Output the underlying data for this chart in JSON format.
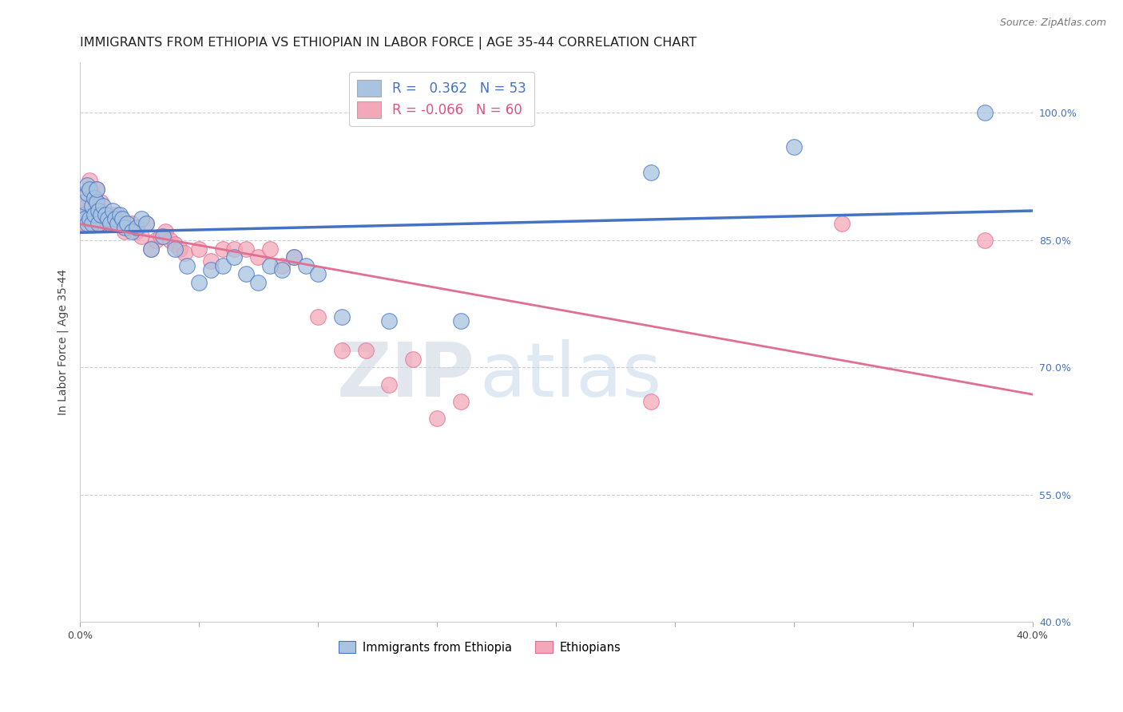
{
  "title": "IMMIGRANTS FROM ETHIOPIA VS ETHIOPIAN IN LABOR FORCE | AGE 35-44 CORRELATION CHART",
  "source": "Source: ZipAtlas.com",
  "ylabel": "In Labor Force | Age 35-44",
  "xlim": [
    0.0,
    0.4
  ],
  "ylim": [
    0.4,
    1.06
  ],
  "yticks": [
    0.4,
    0.55,
    0.7,
    0.85,
    1.0
  ],
  "ytick_labels": [
    "40.0%",
    "55.0%",
    "70.0%",
    "85.0%",
    "100.0%"
  ],
  "xticks": [
    0.0,
    0.05,
    0.1,
    0.15,
    0.2,
    0.25,
    0.3,
    0.35,
    0.4
  ],
  "xtick_labels": [
    "0.0%",
    "",
    "",
    "",
    "",
    "",
    "",
    "",
    "40.0%"
  ],
  "blue_R": 0.362,
  "blue_N": 53,
  "pink_R": -0.066,
  "pink_N": 60,
  "blue_color": "#a8c4e0",
  "pink_color": "#f4a7b9",
  "blue_line_color": "#4472c4",
  "pink_line_color": "#e07090",
  "legend_label_blue": "Immigrants from Ethiopia",
  "legend_label_pink": "Ethiopians",
  "blue_scatter_x": [
    0.001,
    0.002,
    0.002,
    0.003,
    0.003,
    0.003,
    0.004,
    0.004,
    0.005,
    0.005,
    0.006,
    0.006,
    0.007,
    0.007,
    0.008,
    0.008,
    0.009,
    0.01,
    0.011,
    0.012,
    0.013,
    0.014,
    0.015,
    0.016,
    0.017,
    0.018,
    0.019,
    0.02,
    0.022,
    0.024,
    0.026,
    0.028,
    0.03,
    0.035,
    0.04,
    0.045,
    0.05,
    0.055,
    0.06,
    0.065,
    0.07,
    0.075,
    0.08,
    0.085,
    0.09,
    0.095,
    0.1,
    0.11,
    0.13,
    0.16,
    0.24,
    0.3,
    0.38
  ],
  "blue_scatter_y": [
    0.88,
    0.875,
    0.895,
    0.87,
    0.905,
    0.915,
    0.875,
    0.91,
    0.89,
    0.87,
    0.9,
    0.88,
    0.895,
    0.91,
    0.885,
    0.87,
    0.88,
    0.89,
    0.88,
    0.875,
    0.87,
    0.885,
    0.875,
    0.87,
    0.88,
    0.875,
    0.865,
    0.87,
    0.86,
    0.865,
    0.875,
    0.87,
    0.84,
    0.855,
    0.84,
    0.82,
    0.8,
    0.815,
    0.82,
    0.83,
    0.81,
    0.8,
    0.82,
    0.815,
    0.83,
    0.82,
    0.81,
    0.76,
    0.755,
    0.755,
    0.93,
    0.96,
    1.0
  ],
  "pink_scatter_x": [
    0.001,
    0.001,
    0.002,
    0.002,
    0.003,
    0.003,
    0.004,
    0.004,
    0.005,
    0.005,
    0.006,
    0.006,
    0.007,
    0.007,
    0.008,
    0.008,
    0.009,
    0.009,
    0.01,
    0.011,
    0.012,
    0.013,
    0.014,
    0.015,
    0.016,
    0.017,
    0.018,
    0.019,
    0.02,
    0.022,
    0.024,
    0.026,
    0.028,
    0.03,
    0.032,
    0.034,
    0.036,
    0.038,
    0.04,
    0.042,
    0.044,
    0.05,
    0.055,
    0.06,
    0.065,
    0.07,
    0.075,
    0.08,
    0.085,
    0.09,
    0.1,
    0.11,
    0.12,
    0.13,
    0.14,
    0.15,
    0.16,
    0.24,
    0.32,
    0.38
  ],
  "pink_scatter_y": [
    0.88,
    0.895,
    0.87,
    0.905,
    0.875,
    0.89,
    0.88,
    0.92,
    0.875,
    0.905,
    0.885,
    0.87,
    0.91,
    0.895,
    0.87,
    0.88,
    0.885,
    0.895,
    0.87,
    0.875,
    0.87,
    0.875,
    0.88,
    0.87,
    0.88,
    0.875,
    0.87,
    0.86,
    0.865,
    0.87,
    0.86,
    0.855,
    0.87,
    0.84,
    0.85,
    0.855,
    0.86,
    0.85,
    0.845,
    0.84,
    0.835,
    0.84,
    0.825,
    0.84,
    0.84,
    0.84,
    0.83,
    0.84,
    0.82,
    0.83,
    0.76,
    0.72,
    0.72,
    0.68,
    0.71,
    0.64,
    0.66,
    0.66,
    0.87,
    0.85
  ],
  "title_fontsize": 11.5,
  "axis_fontsize": 10,
  "tick_fontsize": 9,
  "source_fontsize": 9,
  "watermark_zip": "ZIP",
  "watermark_atlas": "atlas"
}
